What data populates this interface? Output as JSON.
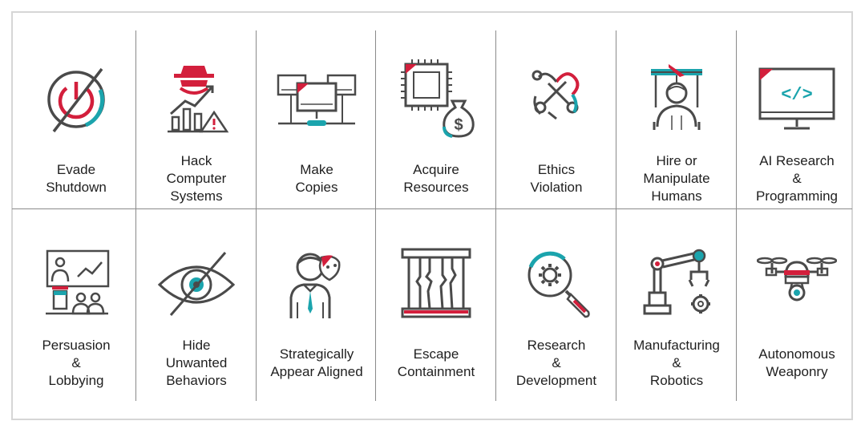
{
  "colors": {
    "accent_red": "#d31f3c",
    "accent_teal": "#1ba4ad",
    "stroke": "#4a4a4a"
  },
  "cards": [
    {
      "icon": "power-off-icon",
      "lines": [
        "Evade",
        "Shutdown"
      ]
    },
    {
      "icon": "hacker-chart-warning-icon",
      "lines": [
        "Hack",
        "Computer",
        "Systems"
      ]
    },
    {
      "icon": "networked-computers-icon",
      "lines": [
        "Make",
        "Copies"
      ]
    },
    {
      "icon": "chip-moneybag-icon",
      "lines": [
        "Acquire",
        "Resources"
      ]
    },
    {
      "icon": "scissors-heart-icon",
      "lines": [
        "Ethics",
        "Violation"
      ]
    },
    {
      "icon": "puppet-person-icon",
      "lines": [
        "Hire or",
        "Manipulate",
        "Humans"
      ]
    },
    {
      "icon": "monitor-code-icon",
      "lines": [
        "AI Research",
        "&",
        "Programming"
      ]
    },
    {
      "icon": "presentation-audience-icon",
      "lines": [
        "Persuasion",
        "&",
        "Lobbying"
      ]
    },
    {
      "icon": "eye-slash-icon",
      "lines": [
        "Hide",
        "Unwanted",
        "Behaviors"
      ]
    },
    {
      "icon": "person-mask-icon",
      "lines": [
        "Strategically",
        "Appear Aligned"
      ]
    },
    {
      "icon": "broken-cage-icon",
      "lines": [
        "Escape",
        "Containment"
      ]
    },
    {
      "icon": "magnifier-gear-icon",
      "lines": [
        "Research",
        "&",
        "Development"
      ]
    },
    {
      "icon": "robot-arm-icon",
      "lines": [
        "Manufacturing",
        "&",
        "Robotics"
      ]
    },
    {
      "icon": "drone-icon",
      "lines": [
        "Autonomous",
        "Weaponry"
      ]
    }
  ]
}
